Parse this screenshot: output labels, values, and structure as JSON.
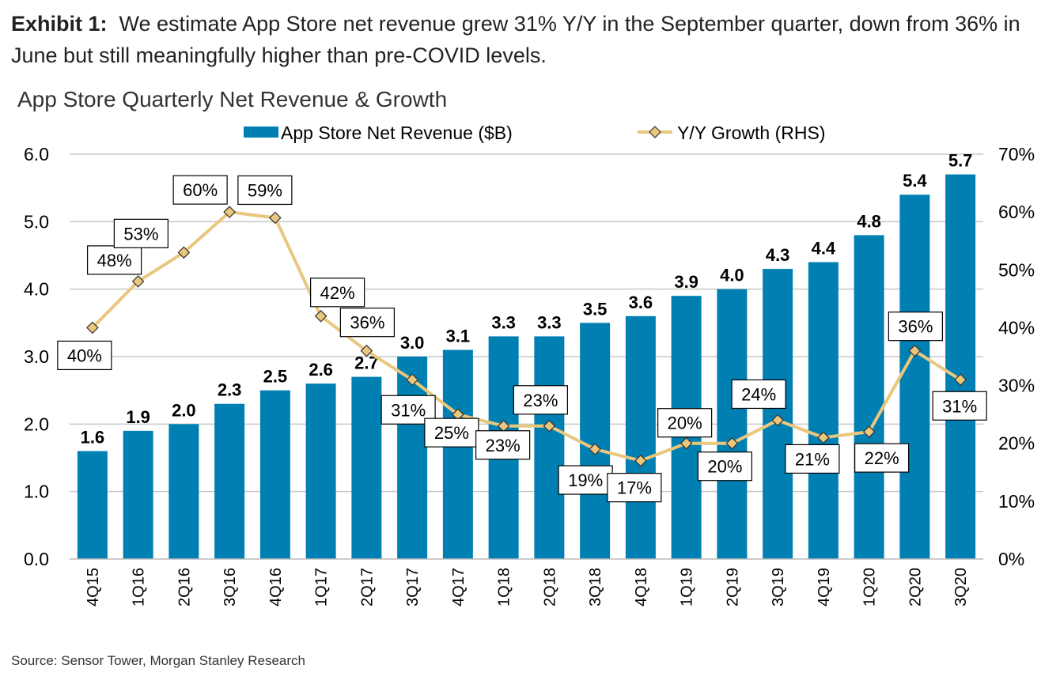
{
  "exhibit": {
    "label": "Exhibit 1:",
    "text": "We estimate App Store net revenue grew 31% Y/Y in the September quarter, down from 36% in June but still meaningfully higher than pre-COVID levels."
  },
  "source": "Source: Sensor Tower, Morgan Stanley Research",
  "chart_data": {
    "type": "bar",
    "title": "App Store Quarterly Net Revenue & Growth",
    "categories": [
      "4Q15",
      "1Q16",
      "2Q16",
      "3Q16",
      "4Q16",
      "1Q17",
      "2Q17",
      "3Q17",
      "4Q17",
      "1Q18",
      "2Q18",
      "3Q18",
      "4Q18",
      "1Q19",
      "2Q19",
      "3Q19",
      "4Q19",
      "1Q20",
      "2Q20",
      "3Q20"
    ],
    "series": [
      {
        "name": "App Store Net Revenue ($B)",
        "type": "bar",
        "axis": "left",
        "color": "#0080B2",
        "values": [
          1.6,
          1.9,
          2.0,
          2.3,
          2.5,
          2.6,
          2.7,
          3.0,
          3.1,
          3.3,
          3.3,
          3.5,
          3.6,
          3.9,
          4.0,
          4.3,
          4.4,
          4.8,
          5.4,
          5.7
        ],
        "labels": [
          "1.6",
          "1.9",
          "2.0",
          "2.3",
          "2.5",
          "2.6",
          "2.7",
          "3.0",
          "3.1",
          "3.3",
          "3.3",
          "3.5",
          "3.6",
          "3.9",
          "4.0",
          "4.3",
          "4.4",
          "4.8",
          "5.4",
          "5.7"
        ]
      },
      {
        "name": "Y/Y Growth (RHS)",
        "type": "line",
        "axis": "right",
        "color": "#E9C77E",
        "values": [
          40,
          48,
          53,
          60,
          59,
          42,
          36,
          31,
          25,
          23,
          23,
          19,
          17,
          20,
          20,
          24,
          21,
          22,
          36,
          31
        ],
        "labels": [
          "40%",
          "48%",
          "53%",
          "60%",
          "59%",
          "42%",
          "36%",
          "31%",
          "25%",
          "23%",
          "23%",
          "19%",
          "17%",
          "20%",
          "20%",
          "24%",
          "21%",
          "22%",
          "36%",
          "31%"
        ]
      }
    ],
    "y_left": {
      "ylim": [
        0,
        6
      ],
      "ticks": [
        "0.0",
        "1.0",
        "2.0",
        "3.0",
        "4.0",
        "5.0",
        "6.0"
      ]
    },
    "y_right": {
      "ylim": [
        0,
        70
      ],
      "ticks": [
        "0%",
        "10%",
        "20%",
        "30%",
        "40%",
        "50%",
        "60%",
        "70%"
      ]
    },
    "grid": true,
    "legend": "top"
  }
}
